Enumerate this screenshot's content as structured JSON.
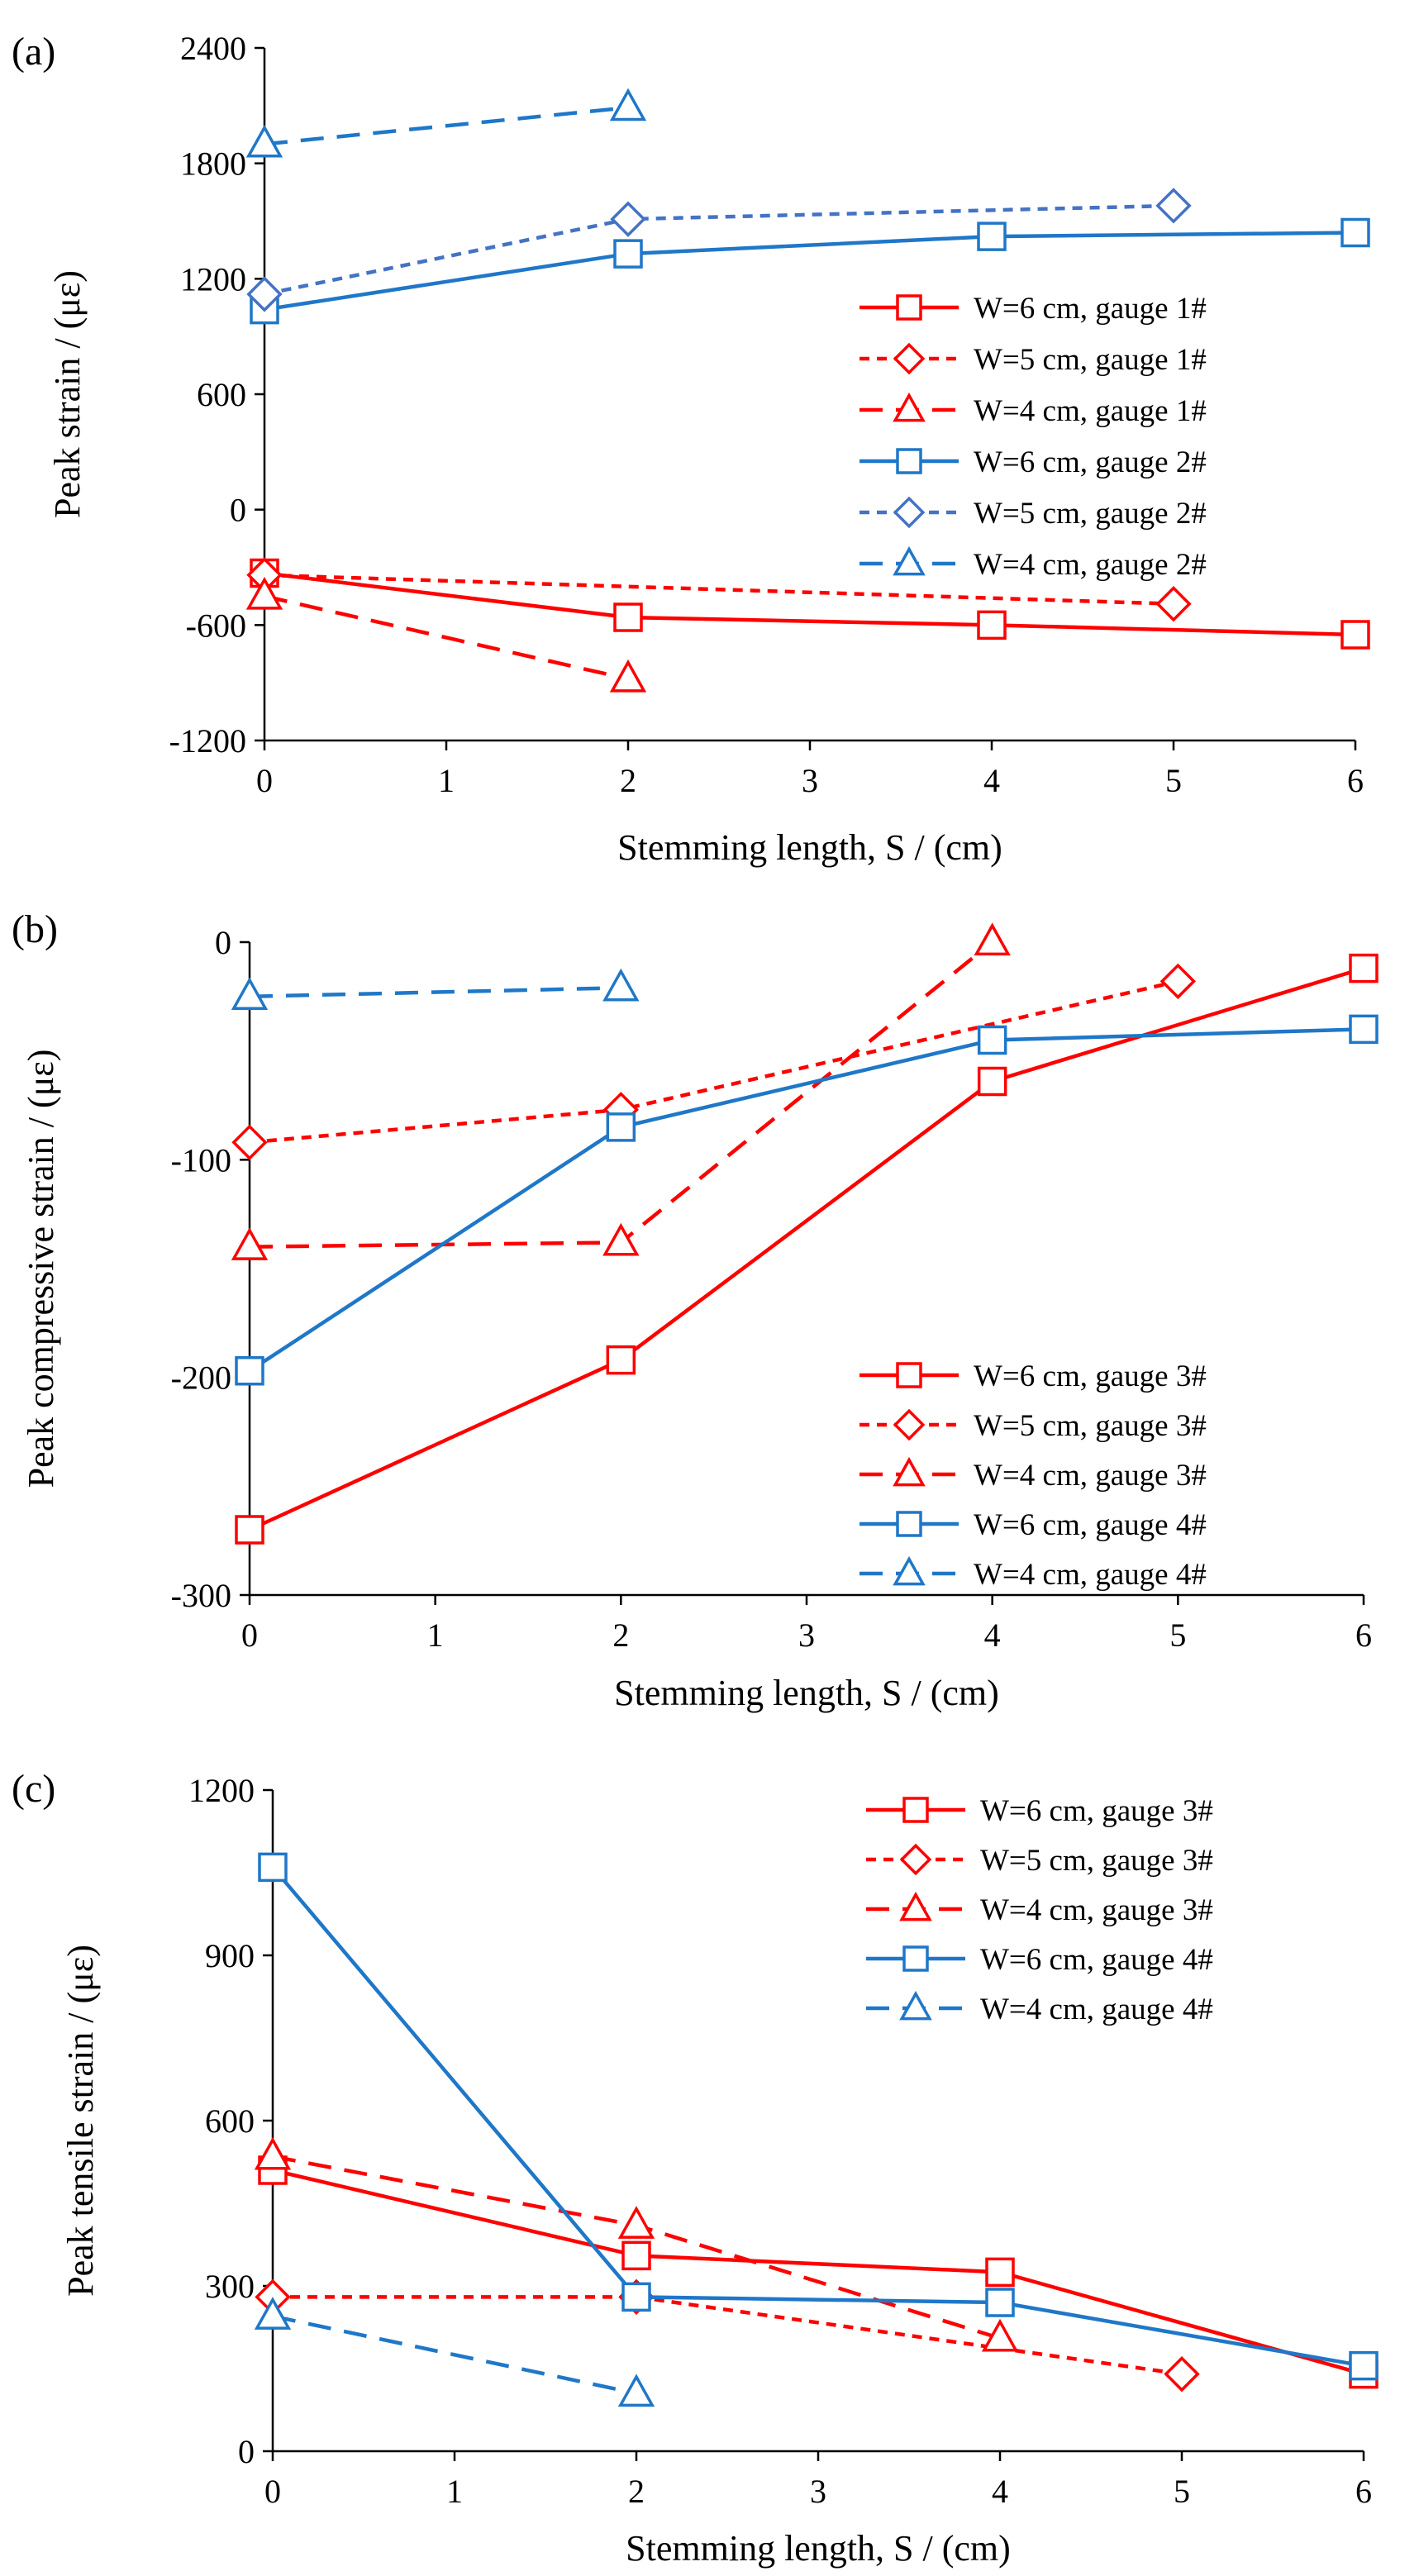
{
  "colors": {
    "red": "#FF0000",
    "blue": "#1F77C8",
    "diamond_blue": "#4472C4"
  },
  "chart_data": [
    {
      "panel": "(a)",
      "type": "line",
      "xlabel": "Stemming length, S / (cm)",
      "ylabel": "Peak strain / (με)",
      "xlim": [
        0,
        6
      ],
      "ylim": [
        -1200,
        2400
      ],
      "xticks": [
        "0",
        "1",
        "2",
        "3",
        "4",
        "5",
        "6"
      ],
      "yticks": [
        "-1200",
        "-600",
        "0",
        "600",
        "1200",
        "1800",
        "2400"
      ],
      "legend_position": "right",
      "series": [
        {
          "name": "W=6 cm, gauge 1#",
          "color": "red",
          "dash": "solid",
          "marker": "square",
          "x": [
            0,
            2,
            4,
            6
          ],
          "values": [
            -330,
            -560,
            -600,
            -650
          ]
        },
        {
          "name": "W=5 cm, gauge 1#",
          "color": "red",
          "dash": "short",
          "marker": "diamond",
          "x": [
            0,
            5
          ],
          "values": [
            -340,
            -490
          ]
        },
        {
          "name": "W=4 cm, gauge 1#",
          "color": "red",
          "dash": "long",
          "marker": "triangle",
          "x": [
            0,
            2
          ],
          "values": [
            -450,
            -880
          ]
        },
        {
          "name": "W=6 cm, gauge 2#",
          "color": "blue",
          "dash": "solid",
          "marker": "square",
          "x": [
            0,
            2,
            4,
            6
          ],
          "values": [
            1040,
            1330,
            1420,
            1440
          ]
        },
        {
          "name": "W=5 cm, gauge 2#",
          "color": "diamond_blue",
          "dash": "short",
          "marker": "diamond",
          "x": [
            0,
            2,
            5
          ],
          "values": [
            1120,
            1510,
            1580
          ]
        },
        {
          "name": "W=4 cm, gauge 2#",
          "color": "blue",
          "dash": "long",
          "marker": "triangle",
          "x": [
            0,
            2
          ],
          "values": [
            1900,
            2090
          ]
        }
      ]
    },
    {
      "panel": "(b)",
      "type": "line",
      "xlabel": "Stemming length, S / (cm)",
      "ylabel": "Peak compressive strain / (με)",
      "xlim": [
        0,
        6
      ],
      "ylim": [
        -300,
        0
      ],
      "xticks": [
        "0",
        "1",
        "2",
        "3",
        "4",
        "5",
        "6"
      ],
      "yticks": [
        "-300",
        "-200",
        "-100",
        "0"
      ],
      "legend_position": "bottom-right",
      "series": [
        {
          "name": "W=6 cm, gauge 3#",
          "color": "red",
          "dash": "solid",
          "marker": "square",
          "x": [
            0,
            2,
            4,
            6
          ],
          "values": [
            -270,
            -192,
            -64,
            -12
          ]
        },
        {
          "name": "W=5 cm, gauge 3#",
          "color": "red",
          "dash": "short",
          "marker": "diamond",
          "x": [
            0,
            2,
            5
          ],
          "values": [
            -92,
            -77,
            -18
          ]
        },
        {
          "name": "W=4 cm, gauge 3#",
          "color": "red",
          "dash": "long",
          "marker": "triangle",
          "x": [
            0,
            2,
            4
          ],
          "values": [
            -140,
            -138,
            0
          ]
        },
        {
          "name": "W=6 cm, gauge 4#",
          "color": "blue",
          "dash": "solid",
          "marker": "square",
          "x": [
            0,
            2,
            4,
            6
          ],
          "values": [
            -197,
            -85,
            -45,
            -40
          ]
        },
        {
          "name": "W=4 cm, gauge 4#",
          "color": "blue",
          "dash": "long",
          "marker": "triangle",
          "x": [
            0,
            2
          ],
          "values": [
            -25,
            -21
          ]
        }
      ]
    },
    {
      "panel": "(c)",
      "type": "line",
      "xlabel": "Stemming length, S / (cm)",
      "ylabel": "Peak tensile strain / (με)",
      "xlim": [
        0,
        6
      ],
      "ylim": [
        0,
        1200
      ],
      "xticks": [
        "0",
        "1",
        "2",
        "3",
        "4",
        "5",
        "6"
      ],
      "yticks": [
        "0",
        "300",
        "600",
        "900",
        "1200"
      ],
      "legend_position": "top-right",
      "series": [
        {
          "name": "W=6 cm, gauge 3#",
          "color": "red",
          "dash": "solid",
          "marker": "square",
          "x": [
            0,
            2,
            4,
            6
          ],
          "values": [
            510,
            355,
            325,
            140
          ]
        },
        {
          "name": "W=5 cm, gauge 3#",
          "color": "red",
          "dash": "short",
          "marker": "diamond",
          "x": [
            0,
            2,
            5
          ],
          "values": [
            280,
            280,
            140
          ]
        },
        {
          "name": "W=4 cm, gauge 3#",
          "color": "red",
          "dash": "long",
          "marker": "triangle",
          "x": [
            0,
            2,
            4
          ],
          "values": [
            535,
            410,
            205
          ]
        },
        {
          "name": "W=6 cm, gauge 4#",
          "color": "blue",
          "dash": "solid",
          "marker": "square",
          "x": [
            0,
            2,
            4,
            6
          ],
          "values": [
            1060,
            280,
            270,
            155
          ]
        },
        {
          "name": "W=4 cm, gauge 4#",
          "color": "blue",
          "dash": "long",
          "marker": "triangle",
          "x": [
            0,
            2
          ],
          "values": [
            245,
            105
          ]
        }
      ]
    }
  ]
}
